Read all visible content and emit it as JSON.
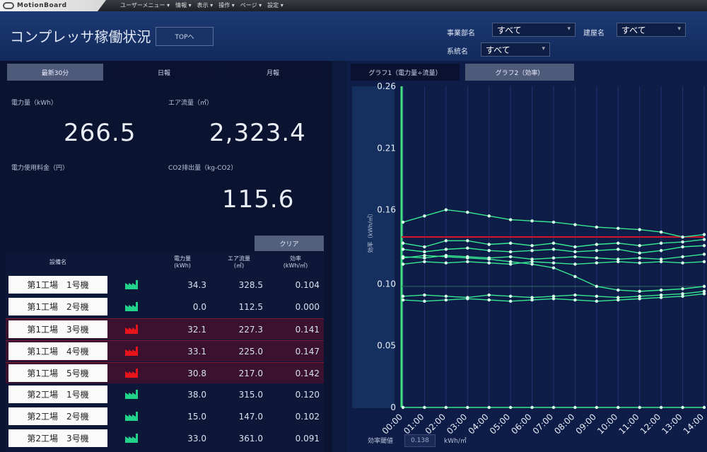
{
  "topbar": {
    "brand": "MotionBoard",
    "menu": [
      "ユーザーメニュー ▾",
      "情報 ▾",
      "表示 ▾",
      "操作 ▾",
      "ページ ▾",
      "設定 ▾"
    ]
  },
  "header": {
    "title": "コンプレッサ稼働状況",
    "top_button": "TOPへ",
    "filters": {
      "dept_label": "事業部名",
      "dept_value": "すべて",
      "factory_label": "建屋名",
      "factory_value": "すべて",
      "system_label": "系統名",
      "system_value": "すべて"
    }
  },
  "left": {
    "tabs": [
      "最新30分",
      "日報",
      "月報"
    ],
    "metrics": {
      "power_label": "電力量（kWh）",
      "power_value": "266.5",
      "air_label": "エア流量（㎥）",
      "air_value": "2,323.4",
      "cost_label": "電力使用料金（円）",
      "co2_label": "CO2排出量（kg-CO2）",
      "co2_value": "115.6"
    },
    "clear_button": "クリア",
    "table": {
      "headers": [
        "設備名",
        "電力量\n(kWh)",
        "エア流量\n(㎥)",
        "効率\n(kWh/㎥)"
      ],
      "rows": [
        {
          "name": "第1工場　1号機",
          "power": "34.3",
          "air": "328.5",
          "eff": "0.104",
          "alert": false
        },
        {
          "name": "第1工場　2号機",
          "power": "0.0",
          "air": "112.5",
          "eff": "0.000",
          "alert": false
        },
        {
          "name": "第1工場　3号機",
          "power": "32.1",
          "air": "227.3",
          "eff": "0.141",
          "alert": true
        },
        {
          "name": "第1工場　4号機",
          "power": "33.1",
          "air": "225.0",
          "eff": "0.147",
          "alert": true
        },
        {
          "name": "第1工場　5号機",
          "power": "30.8",
          "air": "217.0",
          "eff": "0.142",
          "alert": true
        },
        {
          "name": "第2工場　1号機",
          "power": "38.0",
          "air": "315.0",
          "eff": "0.120",
          "alert": false
        },
        {
          "name": "第2工場　2号機",
          "power": "15.0",
          "air": "147.0",
          "eff": "0.102",
          "alert": false
        },
        {
          "name": "第2工場　3号機",
          "power": "33.0",
          "air": "361.0",
          "eff": "0.091",
          "alert": false
        }
      ],
      "colors": {
        "ok": "#22d28a",
        "alert": "#e8141c"
      }
    }
  },
  "right": {
    "tabs": [
      "グラフ1（電力量÷流量）",
      "グラフ2（効率）"
    ],
    "footer": {
      "label": "効率閾値",
      "value": "0.138",
      "unit": "kWh/㎥"
    }
  },
  "chart_data": {
    "type": "line",
    "ylabel": "効率（kWh/㎥）",
    "ylim": [
      0,
      0.26
    ],
    "yticks": [
      "0",
      "0.05",
      "0.10",
      "0.16",
      "0.21",
      "0.26"
    ],
    "x": [
      "00:00",
      "01:00",
      "02:00",
      "03:00",
      "04:00",
      "05:00",
      "06:00",
      "07:00",
      "08:00",
      "09:00",
      "10:00",
      "11:00",
      "12:00",
      "13:00",
      "14:00"
    ],
    "threshold": 0.138,
    "threshold_color": "#d4142a",
    "reference_line": 0.098,
    "series": [
      {
        "values": [
          0.15,
          0.155,
          0.16,
          0.158,
          0.155,
          0.152,
          0.151,
          0.15,
          0.148,
          0.146,
          0.145,
          0.144,
          0.142,
          0.138,
          0.14
        ]
      },
      {
        "values": [
          0.133,
          0.13,
          0.135,
          0.135,
          0.132,
          0.133,
          0.131,
          0.133,
          0.13,
          0.132,
          0.133,
          0.131,
          0.133,
          0.134,
          0.136
        ]
      },
      {
        "values": [
          0.128,
          0.126,
          0.128,
          0.129,
          0.127,
          0.126,
          0.127,
          0.128,
          0.126,
          0.127,
          0.128,
          0.125,
          0.127,
          0.13,
          0.131
        ]
      },
      {
        "values": [
          0.122,
          0.121,
          0.123,
          0.122,
          0.121,
          0.122,
          0.12,
          0.121,
          0.122,
          0.121,
          0.12,
          0.121,
          0.12,
          0.122,
          0.124
        ]
      },
      {
        "values": [
          0.116,
          0.118,
          0.117,
          0.118,
          0.117,
          0.116,
          0.118,
          0.117,
          0.116,
          0.117,
          0.118,
          0.117,
          0.118,
          0.117,
          0.118
        ]
      },
      {
        "values": [
          0.121,
          0.123,
          0.122,
          0.121,
          0.12,
          0.118,
          0.116,
          0.113,
          0.106,
          0.098,
          0.095,
          0.094,
          0.095,
          0.096,
          0.098
        ]
      },
      {
        "values": [
          0.09,
          0.091,
          0.09,
          0.089,
          0.091,
          0.09,
          0.089,
          0.09,
          0.091,
          0.09,
          0.089,
          0.09,
          0.091,
          0.092,
          0.094
        ]
      },
      {
        "values": [
          0.087,
          0.086,
          0.087,
          0.088,
          0.087,
          0.086,
          0.087,
          0.088,
          0.087,
          0.086,
          0.087,
          0.088,
          0.089,
          0.09,
          0.092
        ]
      },
      {
        "values": [
          0,
          0,
          0,
          0,
          0,
          0,
          0,
          0,
          0,
          0,
          0,
          0,
          0,
          0,
          0
        ]
      }
    ],
    "series_color": "#36e890",
    "axis_color": "#3fe07c"
  }
}
